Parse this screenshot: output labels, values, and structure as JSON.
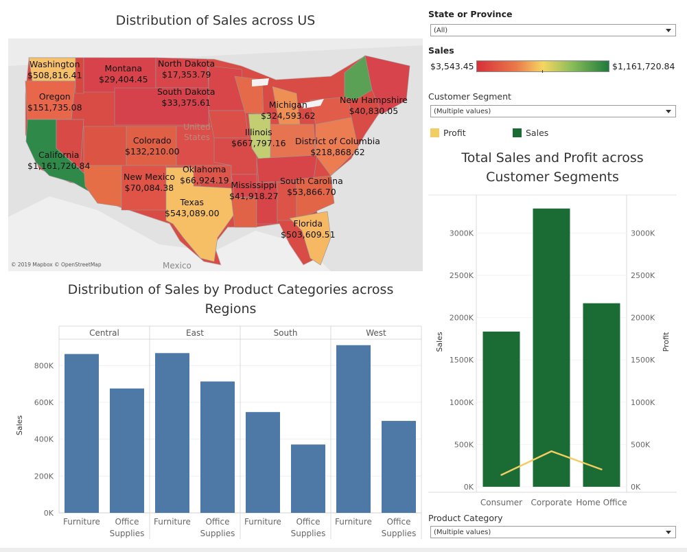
{
  "map": {
    "title": "Distribution of Sales across US",
    "credit": "© 2019 Mapbox © OpenStreetMap",
    "mexico_label": "Mexico",
    "country_watermark": "United States",
    "labels": [
      {
        "name": "Washington",
        "value": "$508,816.41"
      },
      {
        "name": "Montana",
        "value": "$29,404.45"
      },
      {
        "name": "North Dakota",
        "value": "$17,353.79"
      },
      {
        "name": "Oregon",
        "value": "$151,735.08"
      },
      {
        "name": "South Dakota",
        "value": "$33,375.61"
      },
      {
        "name": "Michigan",
        "value": "$324,593.62"
      },
      {
        "name": "New Hampshire",
        "value": "$40,830.05"
      },
      {
        "name": "Illinois",
        "value": "$667,797.16"
      },
      {
        "name": "Colorado",
        "value": "$132,210.00"
      },
      {
        "name": "District of Columbia",
        "value": "$218,868.62"
      },
      {
        "name": "California",
        "value": "$1,161,720.84"
      },
      {
        "name": "Oklahoma",
        "value": "$66,924.19"
      },
      {
        "name": "New Mexico",
        "value": "$70,084.38"
      },
      {
        "name": "Mississippi",
        "value": "$41,918.27"
      },
      {
        "name": "South Carolina",
        "value": "$53,866.70"
      },
      {
        "name": "Texas",
        "value": "$543,089.00"
      },
      {
        "name": "Florida",
        "value": "$503,609.51"
      }
    ]
  },
  "filters": {
    "state_label": "State or Province",
    "state_value": "(All)",
    "sales_label": "Sales",
    "sales_min": "$3,543.45",
    "sales_max": "$1,161,720.84",
    "segment_label": "Customer Segment",
    "segment_value": "(Multiple values)",
    "category_label": "Product Category",
    "category_value": "(Multiple values)",
    "legend_profit": "Profit",
    "legend_sales": "Sales",
    "colors": {
      "profit": "#f2ce62",
      "sales": "#1b6b35",
      "grad_low": "#d7303a",
      "grad_mid": "#f5d661",
      "grad_high": "#1f7a3b"
    }
  },
  "chart_data": [
    {
      "type": "bar",
      "title": "Distribution of Sales by Product Categories across Regions",
      "panels": [
        "Central",
        "East",
        "South",
        "West"
      ],
      "categories": [
        "Furniture",
        "Office Supplies"
      ],
      "category_lines": [
        [
          "Furniture"
        ],
        [
          "Office",
          "Supplies"
        ]
      ],
      "series": [
        {
          "values": [
            [
              862000,
              675000
            ],
            [
              867000,
              713000
            ],
            [
              547000,
              371000
            ],
            [
              910000,
              499000
            ]
          ]
        }
      ],
      "ylabel": "Sales",
      "yticks": [
        0,
        200000,
        400000,
        600000,
        800000
      ],
      "ytick_labels": [
        "0K",
        "200K",
        "400K",
        "600K",
        "800K"
      ],
      "ylim": [
        0,
        950000
      ],
      "bar_color": "#4e79a7"
    },
    {
      "type": "bar+line",
      "title": "Total Sales and Profit across Customer Segments",
      "categories": [
        "Consumer",
        "Corporate",
        "Home Office"
      ],
      "series": [
        {
          "name": "Sales",
          "type": "bar",
          "values": [
            1835000,
            3290000,
            2170000
          ],
          "color": "#1b6b35"
        },
        {
          "name": "Profit",
          "type": "line",
          "values": [
            140000,
            420000,
            205000
          ],
          "color": "#f2ce62"
        }
      ],
      "ylabel": "Sales",
      "y2label": "Profit",
      "yticks": [
        0,
        500000,
        1000000,
        1500000,
        2000000,
        2500000,
        3000000
      ],
      "ytick_labels": [
        "0K",
        "500K",
        "1000K",
        "1500K",
        "2000K",
        "2500K",
        "3000K"
      ],
      "ylim": [
        0,
        3450000
      ],
      "y2lim": [
        0,
        3450000
      ]
    }
  ]
}
